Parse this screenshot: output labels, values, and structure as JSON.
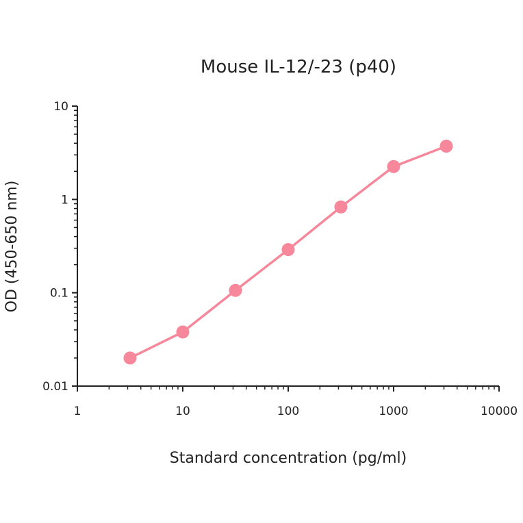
{
  "chart_data": {
    "type": "line",
    "title": "Mouse IL-12/-23 (p40)",
    "xlabel": "Standard concentration (pg/ml)",
    "ylabel": "OD  (450-650 nm)",
    "x_scale": "log",
    "y_scale": "log",
    "xlim": [
      1,
      10000
    ],
    "ylim": [
      0.01,
      10
    ],
    "x_ticks": [
      1,
      10,
      100,
      1000,
      10000
    ],
    "x_tick_labels": [
      "1",
      "10",
      "100",
      "1000",
      "10000"
    ],
    "y_ticks": [
      0.01,
      0.1,
      1,
      10
    ],
    "y_tick_labels": [
      "0.01",
      "0.1",
      "1",
      "10"
    ],
    "grid": false,
    "legend": "none",
    "color": "#f7879a",
    "series": [
      {
        "x": [
          3.16,
          10,
          31.6,
          100,
          316,
          1000,
          3160
        ],
        "y": [
          0.02,
          0.038,
          0.106,
          0.29,
          0.83,
          2.25,
          3.72
        ]
      }
    ]
  }
}
